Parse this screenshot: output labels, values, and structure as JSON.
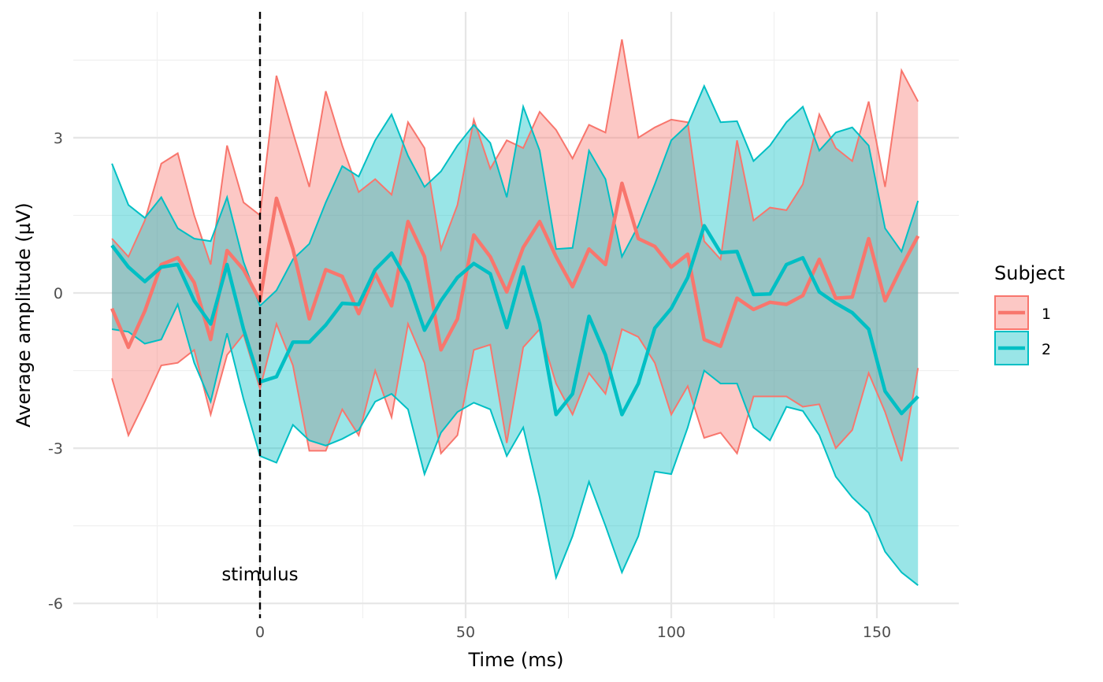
{
  "chart_data": {
    "type": "area",
    "xlabel": "Time (ms)",
    "ylabel": "Average amplitude (µV)",
    "xlim": [
      -36,
      160
    ],
    "ylim": [
      -6,
      4.9
    ],
    "x_ticks": [
      0,
      50,
      100,
      150
    ],
    "x_tick_labels": [
      "0",
      "50",
      "100",
      "150"
    ],
    "y_ticks": [
      3,
      0,
      -3,
      -6
    ],
    "y_tick_labels": [
      "3",
      "0",
      "-3",
      "-6"
    ],
    "grid": true,
    "annotation": {
      "text": "stimulus",
      "x": 0
    },
    "legend": {
      "title": "Subject",
      "placement": "right"
    },
    "x": [
      -36,
      -32,
      -28,
      -24,
      -20,
      -16,
      -12,
      -8,
      -4,
      0,
      4,
      8,
      12,
      16,
      20,
      24,
      28,
      32,
      36,
      40,
      44,
      48,
      52,
      56,
      60,
      64,
      68,
      72,
      76,
      80,
      84,
      88,
      92,
      96,
      100,
      104,
      108,
      112,
      116,
      120,
      124,
      128,
      132,
      136,
      140,
      144,
      148,
      152,
      156,
      160
    ],
    "series": [
      {
        "name": "1",
        "color": "#F8766D",
        "mean": [
          -0.3,
          -1.05,
          -0.35,
          0.55,
          0.68,
          0.2,
          -0.9,
          0.82,
          0.45,
          -0.15,
          1.83,
          0.85,
          -0.5,
          0.45,
          0.32,
          -0.4,
          0.38,
          -0.25,
          1.38,
          0.7,
          -1.1,
          -0.5,
          1.12,
          0.7,
          0.02,
          0.88,
          1.38,
          0.7,
          0.12,
          0.85,
          0.55,
          2.12,
          1.05,
          0.9,
          0.5,
          0.75,
          -0.9,
          -1.03,
          -0.1,
          -0.32,
          -0.18,
          -0.22,
          -0.05,
          0.65,
          -0.1,
          -0.08,
          1.05,
          -0.15,
          0.5,
          1.1
        ],
        "upper": [
          1.05,
          0.7,
          1.4,
          2.5,
          2.7,
          1.5,
          0.55,
          2.85,
          1.75,
          1.5,
          4.2,
          3.1,
          2.05,
          3.9,
          2.85,
          1.95,
          2.2,
          1.9,
          3.3,
          2.8,
          0.85,
          1.7,
          3.35,
          2.4,
          2.95,
          2.8,
          3.5,
          3.15,
          2.6,
          3.25,
          3.1,
          4.9,
          3.0,
          3.2,
          3.35,
          3.3,
          1.0,
          0.65,
          2.95,
          1.4,
          1.65,
          1.6,
          2.1,
          3.45,
          2.8,
          2.55,
          3.7,
          2.05,
          4.3,
          3.7
        ],
        "lower": [
          -1.65,
          -2.75,
          -2.1,
          -1.4,
          -1.35,
          -1.1,
          -2.35,
          -1.2,
          -0.8,
          -1.85,
          -0.6,
          -1.4,
          -3.05,
          -3.05,
          -2.25,
          -2.75,
          -1.5,
          -2.4,
          -0.6,
          -1.35,
          -3.1,
          -2.75,
          -1.1,
          -1.0,
          -2.9,
          -1.05,
          -0.7,
          -1.75,
          -2.35,
          -1.55,
          -1.95,
          -0.7,
          -0.85,
          -1.35,
          -2.35,
          -1.8,
          -2.8,
          -2.7,
          -3.1,
          -2.0,
          -2.0,
          -2.0,
          -2.2,
          -2.15,
          -3.0,
          -2.65,
          -1.55,
          -2.3,
          -3.25,
          -1.45
        ]
      },
      {
        "name": "2",
        "color": "#00BFC4",
        "mean": [
          0.92,
          0.5,
          0.22,
          0.5,
          0.55,
          -0.15,
          -0.6,
          0.55,
          -0.7,
          -1.72,
          -1.62,
          -0.95,
          -0.95,
          -0.62,
          -0.2,
          -0.22,
          0.45,
          0.77,
          0.2,
          -0.72,
          -0.15,
          0.3,
          0.57,
          0.37,
          -0.67,
          0.5,
          -0.6,
          -2.35,
          -1.95,
          -0.45,
          -1.2,
          -2.35,
          -1.75,
          -0.68,
          -0.3,
          0.3,
          1.3,
          0.78,
          0.8,
          -0.03,
          -0.02,
          0.55,
          0.68,
          0.02,
          -0.2,
          -0.38,
          -0.7,
          -1.9,
          -2.33,
          -2.0
        ],
        "upper": [
          2.5,
          1.7,
          1.45,
          1.85,
          1.25,
          1.05,
          1.0,
          1.85,
          0.6,
          -0.25,
          0.05,
          0.65,
          0.95,
          1.75,
          2.45,
          2.25,
          2.95,
          3.45,
          2.65,
          2.05,
          2.35,
          2.85,
          3.25,
          2.9,
          1.85,
          3.6,
          2.75,
          0.85,
          0.87,
          2.75,
          2.2,
          0.7,
          1.3,
          2.1,
          2.95,
          3.25,
          4.0,
          3.3,
          3.32,
          2.55,
          2.85,
          3.3,
          3.6,
          2.75,
          3.1,
          3.2,
          2.85,
          1.25,
          0.8,
          1.78
        ],
        "lower": [
          -0.7,
          -0.75,
          -0.98,
          -0.9,
          -0.22,
          -1.35,
          -2.1,
          -0.78,
          -2.05,
          -3.15,
          -3.28,
          -2.55,
          -2.85,
          -2.95,
          -2.82,
          -2.65,
          -2.1,
          -1.95,
          -2.25,
          -3.5,
          -2.7,
          -2.3,
          -2.12,
          -2.25,
          -3.15,
          -2.6,
          -3.95,
          -5.5,
          -4.7,
          -3.65,
          -4.5,
          -5.4,
          -4.7,
          -3.45,
          -3.5,
          -2.6,
          -1.5,
          -1.75,
          -1.75,
          -2.6,
          -2.85,
          -2.2,
          -2.28,
          -2.75,
          -3.55,
          -3.95,
          -4.25,
          -5.0,
          -5.4,
          -5.65
        ]
      }
    ]
  }
}
